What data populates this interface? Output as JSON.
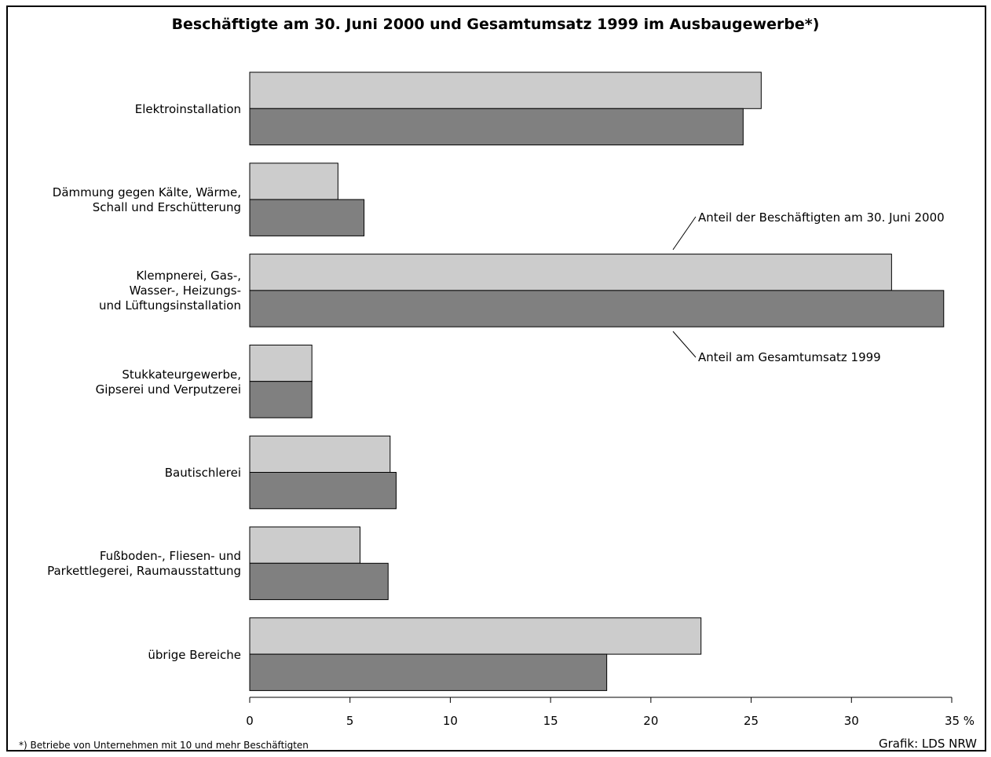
{
  "chart_data": {
    "type": "bar",
    "orientation": "horizontal",
    "title": "Beschäftigte am 30. Juni 2000 und Gesamtumsatz 1999 im Ausbaugewerbe*)",
    "categories": [
      [
        "Elektroinstallation"
      ],
      [
        "Dämmung gegen Kälte, Wärme,",
        "Schall und Erschütterung"
      ],
      [
        "Klempnerei, Gas-,",
        "Wasser-, Heizungs-",
        "und Lüftungsinstallation"
      ],
      [
        "Stukkateurgewerbe,",
        "Gipserei und Verputzerei"
      ],
      [
        "Bautischlerei"
      ],
      [
        "Fußboden-, Fliesen- und",
        "Parkettlegerei, Raumausstattung"
      ],
      [
        "übrige Bereiche"
      ]
    ],
    "series": [
      {
        "name": "Anteil der Beschäftigten am 30. Juni 2000",
        "color": "#cccccc",
        "values": [
          25.5,
          4.4,
          32.0,
          3.1,
          7.0,
          5.5,
          22.5
        ]
      },
      {
        "name": "Anteil am Gesamtumsatz 1999",
        "color": "#808080",
        "values": [
          24.6,
          5.7,
          34.6,
          3.1,
          7.3,
          6.9,
          17.8
        ]
      }
    ],
    "xlim": [
      0,
      35
    ],
    "xticks": [
      0,
      5,
      10,
      15,
      20,
      25,
      30,
      35
    ],
    "xtick_labels": [
      "0",
      "5",
      "10",
      "15",
      "20",
      "25",
      "30",
      "35 %"
    ],
    "legend": "annotations"
  },
  "footnote": "*) Betriebe von Unternehmen mit 10 und mehr Beschäftigten",
  "credit": "Grafik: LDS NRW"
}
